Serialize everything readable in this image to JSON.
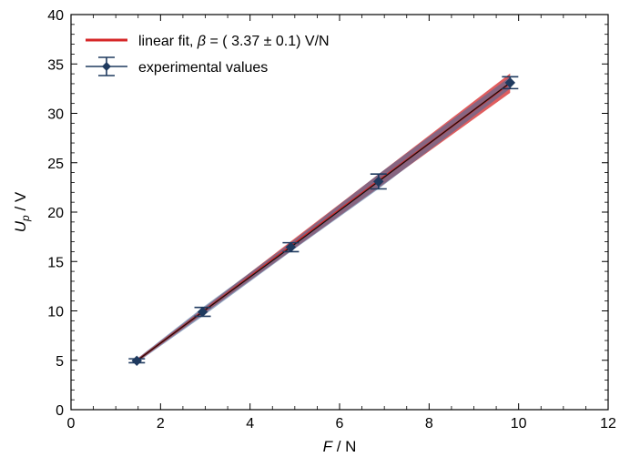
{
  "chart_data": {
    "type": "scatter",
    "title": "",
    "xlabel": "F / N",
    "ylabel": "U_p / V",
    "xlabel_var": "F",
    "xlabel_unit": " / N",
    "ylabel_var": "U",
    "ylabel_sub": "p",
    "ylabel_unit": " / V",
    "xlim": [
      0,
      12
    ],
    "ylim": [
      0,
      40
    ],
    "xticks": [
      0,
      2,
      4,
      6,
      8,
      10,
      12
    ],
    "yticks": [
      0,
      5,
      10,
      15,
      20,
      25,
      30,
      35,
      40
    ],
    "grid": false,
    "legend_position": "top-left",
    "series": [
      {
        "name": "linear fit, β = ( 3.37 ± 0.1) V/N",
        "legend_parts": {
          "pre": "linear fit, ",
          "symbol": "β",
          "post": " = ( 3.37 ± 0.1) V/N"
        },
        "kind": "fit_line",
        "slope": 3.37,
        "slope_uncertainty": 0.1,
        "x_range": [
          1.47,
          9.81
        ],
        "color": "#d62728",
        "band_color": "#d62728"
      },
      {
        "name": "experimental values",
        "kind": "errorbar",
        "color": "#1f3a5f",
        "x": [
          1.47,
          2.94,
          4.91,
          6.87,
          9.81
        ],
        "y": [
          4.95,
          9.9,
          16.45,
          23.1,
          33.1
        ],
        "yerr": [
          0.2,
          0.45,
          0.45,
          0.75,
          0.6
        ],
        "band_color": "#4a6a9a"
      }
    ]
  }
}
